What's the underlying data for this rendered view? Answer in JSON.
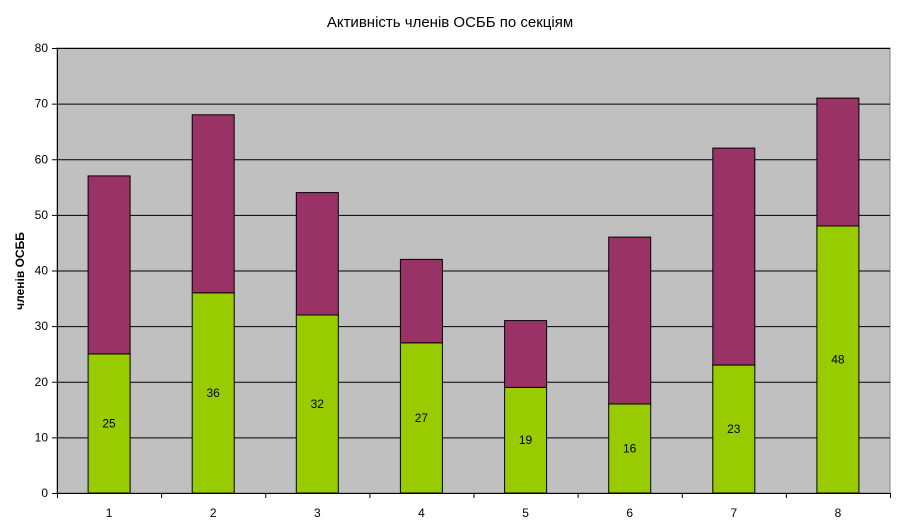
{
  "chart_data": {
    "type": "bar",
    "stacked": true,
    "title": "Активність членів ОСББ по секціям",
    "xlabel": "",
    "ylabel": "членів ОСББ",
    "categories": [
      "1",
      "2",
      "3",
      "4",
      "5",
      "6",
      "7",
      "8"
    ],
    "ylim": [
      0,
      80
    ],
    "yticks": [
      0,
      10,
      20,
      30,
      40,
      50,
      60,
      70,
      80
    ],
    "grid": true,
    "legend": "none",
    "series": [
      {
        "values": [
          25,
          36,
          32,
          27,
          19,
          16,
          23,
          48
        ],
        "color": "#99cc00",
        "show_labels": true
      },
      {
        "values": [
          32,
          32,
          22,
          15,
          12,
          30,
          39,
          23
        ],
        "color": "#993366",
        "show_labels": false
      }
    ],
    "colors": {
      "plot_background": "#c0c0c0",
      "gridline": "#000000",
      "bar_border": "#000000"
    }
  }
}
